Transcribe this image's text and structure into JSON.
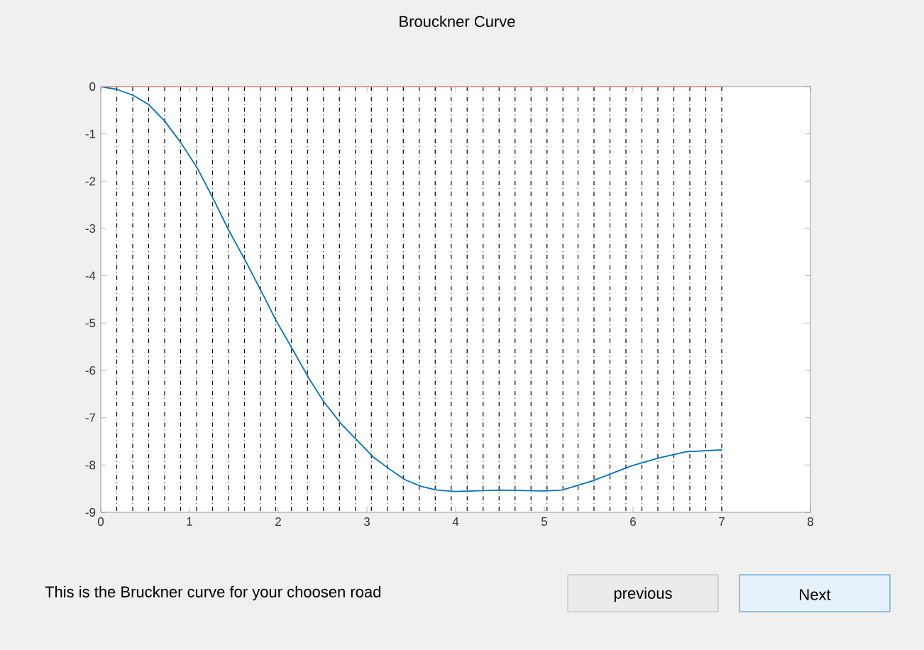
{
  "chart_data": {
    "type": "line",
    "title": "Brouckner Curve",
    "x": [
      0,
      0.18,
      0.36,
      0.54,
      0.72,
      0.9,
      1.09,
      1.27,
      1.44,
      1.63,
      1.81,
      1.98,
      2.17,
      2.35,
      2.52,
      2.71,
      2.89,
      3.07,
      3.25,
      3.43,
      3.61,
      3.79,
      4.0,
      4.5,
      5.0,
      5.2,
      5.55,
      5.98,
      6.29,
      6.6,
      7.0
    ],
    "series": [
      {
        "color": "#0072bd",
        "values": [
          0,
          -0.06,
          -0.18,
          -0.38,
          -0.73,
          -1.18,
          -1.73,
          -2.38,
          -3.03,
          -3.68,
          -4.33,
          -4.96,
          -5.58,
          -6.18,
          -6.68,
          -7.13,
          -7.48,
          -7.83,
          -8.08,
          -8.31,
          -8.45,
          -8.53,
          -8.56,
          -8.53,
          -8.55,
          -8.53,
          -8.33,
          -8.02,
          -7.85,
          -7.72,
          -7.68
        ]
      },
      {
        "color": "#e8a08a",
        "x": [
          0,
          7
        ],
        "values": [
          0,
          0
        ]
      }
    ],
    "xlim": [
      0,
      8
    ],
    "ylim": [
      -9,
      0
    ],
    "xticks": [
      0,
      1,
      2,
      3,
      4,
      5,
      6,
      7,
      8
    ],
    "yticks": [
      -9,
      -8,
      -7,
      -6,
      -5,
      -4,
      -3,
      -2,
      -1,
      0
    ],
    "ref_lines": [
      {
        "axis": "x",
        "value": 0.18,
        "line_style": "dashdot",
        "color": "#000000"
      },
      {
        "axis": "x",
        "value": 0.36,
        "line_style": "dashdot",
        "color": "#000000"
      },
      {
        "axis": "x",
        "value": 0.54,
        "line_style": "dashdot",
        "color": "#000000"
      },
      {
        "axis": "x",
        "value": 0.72,
        "line_style": "dashdot",
        "color": "#000000"
      },
      {
        "axis": "x",
        "value": 0.9,
        "line_style": "dashdot",
        "color": "#000000"
      },
      {
        "axis": "x",
        "value": 1.08,
        "line_style": "dashdot",
        "color": "#000000"
      },
      {
        "axis": "x",
        "value": 1.26,
        "line_style": "dashdot",
        "color": "#000000"
      },
      {
        "axis": "x",
        "value": 1.44,
        "line_style": "dashdot",
        "color": "#000000"
      },
      {
        "axis": "x",
        "value": 1.62,
        "line_style": "dashdot",
        "color": "#000000"
      },
      {
        "axis": "x",
        "value": 1.8,
        "line_style": "dashdot",
        "color": "#000000"
      },
      {
        "axis": "x",
        "value": 1.97,
        "line_style": "dashdot",
        "color": "#000000"
      },
      {
        "axis": "x",
        "value": 2.15,
        "line_style": "dashdot",
        "color": "#000000"
      },
      {
        "axis": "x",
        "value": 2.33,
        "line_style": "dashdot",
        "color": "#000000"
      },
      {
        "axis": "x",
        "value": 2.51,
        "line_style": "dashdot",
        "color": "#000000"
      },
      {
        "axis": "x",
        "value": 2.69,
        "line_style": "dashdot",
        "color": "#000000"
      },
      {
        "axis": "x",
        "value": 2.87,
        "line_style": "dashdot",
        "color": "#000000"
      },
      {
        "axis": "x",
        "value": 3.05,
        "line_style": "dashdot",
        "color": "#000000"
      },
      {
        "axis": "x",
        "value": 3.23,
        "line_style": "dashdot",
        "color": "#000000"
      },
      {
        "axis": "x",
        "value": 3.41,
        "line_style": "dashdot",
        "color": "#000000"
      },
      {
        "axis": "x",
        "value": 3.59,
        "line_style": "dashdot",
        "color": "#000000"
      },
      {
        "axis": "x",
        "value": 3.77,
        "line_style": "dashdot",
        "color": "#000000"
      },
      {
        "axis": "x",
        "value": 3.95,
        "line_style": "dashdot",
        "color": "#000000"
      },
      {
        "axis": "x",
        "value": 4.13,
        "line_style": "dashdot",
        "color": "#000000"
      },
      {
        "axis": "x",
        "value": 4.31,
        "line_style": "dashdot",
        "color": "#000000"
      },
      {
        "axis": "x",
        "value": 4.49,
        "line_style": "dashdot",
        "color": "#000000"
      },
      {
        "axis": "x",
        "value": 4.67,
        "line_style": "dashdot",
        "color": "#000000"
      },
      {
        "axis": "x",
        "value": 4.85,
        "line_style": "dashdot",
        "color": "#000000"
      },
      {
        "axis": "x",
        "value": 5.03,
        "line_style": "dashdot",
        "color": "#000000"
      },
      {
        "axis": "x",
        "value": 5.21,
        "line_style": "dashdot",
        "color": "#000000"
      },
      {
        "axis": "x",
        "value": 5.38,
        "line_style": "dashdot",
        "color": "#000000"
      },
      {
        "axis": "x",
        "value": 5.56,
        "line_style": "dashdot",
        "color": "#000000"
      },
      {
        "axis": "x",
        "value": 5.74,
        "line_style": "dashdot",
        "color": "#000000"
      },
      {
        "axis": "x",
        "value": 5.92,
        "line_style": "dashdot",
        "color": "#000000"
      },
      {
        "axis": "x",
        "value": 6.1,
        "line_style": "dashdot",
        "color": "#000000"
      },
      {
        "axis": "x",
        "value": 6.28,
        "line_style": "dashdot",
        "color": "#000000"
      },
      {
        "axis": "x",
        "value": 6.46,
        "line_style": "dashdot",
        "color": "#000000"
      },
      {
        "axis": "x",
        "value": 6.64,
        "line_style": "dashdot",
        "color": "#000000"
      },
      {
        "axis": "x",
        "value": 6.82,
        "line_style": "dashdot",
        "color": "#000000"
      },
      {
        "axis": "x",
        "value": 7.0,
        "line_style": "dashdot",
        "color": "#000000"
      }
    ],
    "annotations": [
      "This is the Bruckner curve for your choosen road",
      "previous",
      "Next"
    ],
    "grid": false,
    "marker": "none",
    "line_style": "solid"
  }
}
